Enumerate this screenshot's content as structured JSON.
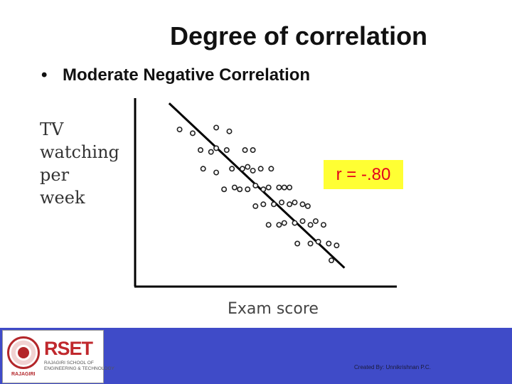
{
  "slide": {
    "title": "Degree of correlation",
    "bullet_marker": "•",
    "bullet": "Moderate Negative Correlation"
  },
  "chart_data": {
    "type": "scatter",
    "ylabel_lines": [
      "TV",
      "watching",
      "per",
      "week"
    ],
    "xlabel": "Exam score",
    "annotation": "r = -.80",
    "annotation_colors": {
      "background": "#ffff33",
      "text": "#e3001b"
    },
    "xlim": [
      0,
      100
    ],
    "ylim": [
      0,
      100
    ],
    "grid": false,
    "points": [
      [
        17,
        84
      ],
      [
        22,
        82
      ],
      [
        31,
        85
      ],
      [
        36,
        83
      ],
      [
        25,
        73
      ],
      [
        29,
        72
      ],
      [
        31,
        74
      ],
      [
        35,
        73
      ],
      [
        42,
        73
      ],
      [
        45,
        73
      ],
      [
        26,
        63
      ],
      [
        31,
        61
      ],
      [
        37,
        63
      ],
      [
        41,
        63
      ],
      [
        43,
        64
      ],
      [
        45,
        62
      ],
      [
        48,
        63
      ],
      [
        52,
        63
      ],
      [
        34,
        52
      ],
      [
        38,
        53
      ],
      [
        40,
        52
      ],
      [
        43,
        52
      ],
      [
        46,
        54
      ],
      [
        49,
        52
      ],
      [
        51,
        53
      ],
      [
        55,
        53
      ],
      [
        57,
        53
      ],
      [
        59,
        53
      ],
      [
        46,
        43
      ],
      [
        49,
        44
      ],
      [
        53,
        44
      ],
      [
        56,
        45
      ],
      [
        59,
        44
      ],
      [
        61,
        45
      ],
      [
        64,
        44
      ],
      [
        66,
        43
      ],
      [
        51,
        33
      ],
      [
        55,
        33
      ],
      [
        57,
        34
      ],
      [
        61,
        34
      ],
      [
        64,
        35
      ],
      [
        67,
        33
      ],
      [
        69,
        35
      ],
      [
        72,
        33
      ],
      [
        62,
        23
      ],
      [
        67,
        23
      ],
      [
        70,
        24
      ],
      [
        74,
        23
      ],
      [
        77,
        22
      ],
      [
        75,
        14
      ]
    ],
    "trend_line": {
      "from": [
        13,
        98
      ],
      "to": [
        80,
        10
      ]
    }
  },
  "footer": {
    "logo_text": "RSET",
    "logo_subtitle": [
      "RAJAGIRI SCHOOL OF",
      "ENGINEERING & TECHNOLOGY"
    ],
    "seal_word": "RAJAGIRI",
    "credit": "Created By: Unnikrishnan P.C.",
    "colors": {
      "band": "#3f4bc8",
      "brand": "#c0282d"
    }
  }
}
